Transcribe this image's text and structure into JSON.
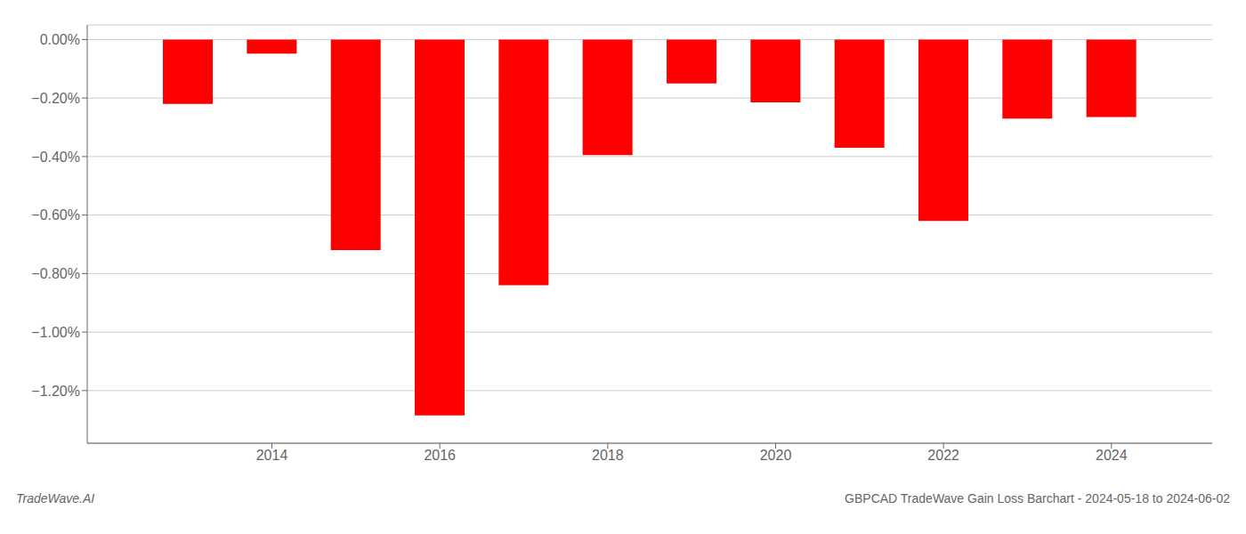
{
  "chart_data": {
    "type": "bar",
    "x": [
      2013,
      2014,
      2015,
      2016,
      2017,
      2018,
      2019,
      2020,
      2021,
      2022,
      2023,
      2024
    ],
    "values": [
      -0.22,
      -0.048,
      -0.72,
      -1.285,
      -0.84,
      -0.395,
      -0.15,
      -0.215,
      -0.37,
      -0.62,
      -0.27,
      -0.265
    ],
    "color": "#ff0000",
    "xlim": [
      2011.8,
      2025.2
    ],
    "xticks": [
      2014,
      2016,
      2018,
      2020,
      2022,
      2024
    ],
    "ylim": [
      -1.38,
      0.05
    ],
    "yticks": [
      {
        "value": 0.0,
        "label": "0.00%"
      },
      {
        "value": -0.2,
        "label": "−0.20%"
      },
      {
        "value": -0.4,
        "label": "−0.40%"
      },
      {
        "value": -0.6,
        "label": "−0.60%"
      },
      {
        "value": -0.8,
        "label": "−0.80%"
      },
      {
        "value": -1.0,
        "label": "−1.00%"
      },
      {
        "value": -1.2,
        "label": "−1.20%"
      }
    ],
    "grid": true,
    "annotations": [
      "TradeWave.AI",
      "GBPCAD TradeWave Gain Loss Barchart - 2024-05-18 to 2024-06-02"
    ]
  }
}
